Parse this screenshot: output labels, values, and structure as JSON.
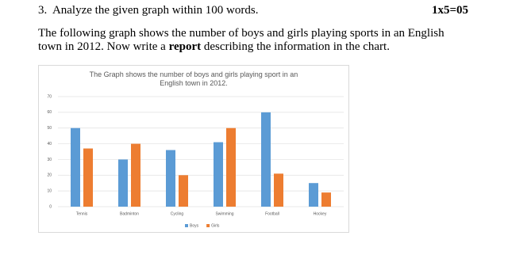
{
  "question": {
    "number": "3.",
    "prompt": "Analyze the given graph within 100 words.",
    "marks": "1x5=05"
  },
  "paragraph": [
    "The following graph shows the number of boys and girls playing sports in an English town in 2012. Now write a ",
    "report",
    " describing the information in the chart."
  ],
  "chart_data": {
    "type": "bar",
    "title": "The Graph shows the number of boys and girls playing sport in an English town in 2012.",
    "categories": [
      "Tennis",
      "Badminton",
      "Cycling",
      "Swimming",
      "Football",
      "Hockey"
    ],
    "series": [
      {
        "name": "Boys",
        "color": "#5b9bd5",
        "values": [
          50,
          30,
          36,
          41,
          60,
          15
        ]
      },
      {
        "name": "Girls",
        "color": "#ed7d31",
        "values": [
          37,
          40,
          20,
          50,
          21,
          9
        ]
      }
    ],
    "ylim": [
      0,
      70
    ],
    "yticks": [
      0,
      10,
      20,
      30,
      40,
      50,
      60,
      70
    ],
    "grid": true,
    "legend": "bottom"
  }
}
